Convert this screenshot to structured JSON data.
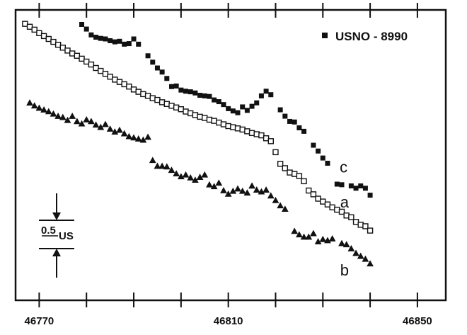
{
  "chart_data": {
    "type": "scatter",
    "title": "",
    "xlabel": "",
    "ylabel": "",
    "xlim": [
      46765,
      46856
    ],
    "ylim": [
      0,
      10
    ],
    "x_ticks": [
      46770,
      46810,
      46850
    ],
    "x_tick_labels": [
      "46770",
      "46810",
      "46850"
    ],
    "grid": false,
    "legend": {
      "label": "USNO - 8990",
      "marker": "filled-square",
      "position": "top-right"
    },
    "scale_bar": {
      "label": "0.5",
      "unit": "US"
    },
    "series": [
      {
        "name": "a",
        "marker": "open-square",
        "points": [
          [
            46767,
            9.52
          ],
          [
            46768,
            9.42
          ],
          [
            46769,
            9.32
          ],
          [
            46770,
            9.2
          ],
          [
            46771,
            9.1
          ],
          [
            46772,
            9.0
          ],
          [
            46773,
            8.9
          ],
          [
            46774,
            8.8
          ],
          [
            46775,
            8.7
          ],
          [
            46776,
            8.6
          ],
          [
            46777,
            8.5
          ],
          [
            46778,
            8.42
          ],
          [
            46779,
            8.32
          ],
          [
            46780,
            8.22
          ],
          [
            46781,
            8.12
          ],
          [
            46782,
            8.0
          ],
          [
            46783,
            7.9
          ],
          [
            46784,
            7.8
          ],
          [
            46785,
            7.7
          ],
          [
            46786,
            7.6
          ],
          [
            46787,
            7.52
          ],
          [
            46788,
            7.44
          ],
          [
            46789,
            7.36
          ],
          [
            46790,
            7.26
          ],
          [
            46791,
            7.18
          ],
          [
            46792,
            7.1
          ],
          [
            46793,
            7.04
          ],
          [
            46794,
            6.96
          ],
          [
            46795,
            6.9
          ],
          [
            46796,
            6.82
          ],
          [
            46797,
            6.76
          ],
          [
            46798,
            6.7
          ],
          [
            46799,
            6.64
          ],
          [
            46800,
            6.58
          ],
          [
            46801,
            6.5
          ],
          [
            46802,
            6.44
          ],
          [
            46803,
            6.38
          ],
          [
            46804,
            6.32
          ],
          [
            46805,
            6.28
          ],
          [
            46806,
            6.22
          ],
          [
            46807,
            6.18
          ],
          [
            46808,
            6.12
          ],
          [
            46809,
            6.06
          ],
          [
            46810,
            6.0
          ],
          [
            46811,
            5.96
          ],
          [
            46812,
            5.92
          ],
          [
            46813,
            5.88
          ],
          [
            46814,
            5.82
          ],
          [
            46815,
            5.76
          ],
          [
            46816,
            5.72
          ],
          [
            46817,
            5.68
          ],
          [
            46818,
            5.58
          ],
          [
            46819,
            5.48
          ],
          [
            46820,
            5.1
          ],
          [
            46821,
            4.7
          ],
          [
            46822,
            4.55
          ],
          [
            46823,
            4.4
          ],
          [
            46824,
            4.35
          ],
          [
            46825,
            4.28
          ],
          [
            46826,
            4.1
          ],
          [
            46827,
            3.78
          ],
          [
            46828,
            3.65
          ],
          [
            46829,
            3.5
          ],
          [
            46830,
            3.4
          ],
          [
            46831,
            3.3
          ],
          [
            46832,
            3.2
          ],
          [
            46833,
            3.12
          ],
          [
            46834,
            3.05
          ],
          [
            46835,
            2.92
          ],
          [
            46836,
            2.86
          ],
          [
            46837,
            2.7
          ],
          [
            46838,
            2.6
          ],
          [
            46839,
            2.55
          ],
          [
            46840,
            2.4
          ]
        ]
      },
      {
        "name": "b",
        "marker": "open-triangle",
        "points": [
          [
            46768,
            6.8
          ],
          [
            46769,
            6.7
          ],
          [
            46770,
            6.62
          ],
          [
            46771,
            6.56
          ],
          [
            46772,
            6.5
          ],
          [
            46773,
            6.42
          ],
          [
            46774,
            6.34
          ],
          [
            46775,
            6.3
          ],
          [
            46776,
            6.2
          ],
          [
            46777,
            6.34
          ],
          [
            46778,
            6.16
          ],
          [
            46779,
            6.08
          ],
          [
            46780,
            6.22
          ],
          [
            46781,
            6.16
          ],
          [
            46782,
            6.04
          ],
          [
            46783,
            5.96
          ],
          [
            46784,
            6.06
          ],
          [
            46785,
            5.9
          ],
          [
            46786,
            5.8
          ],
          [
            46787,
            5.86
          ],
          [
            46788,
            5.74
          ],
          [
            46789,
            5.64
          ],
          [
            46790,
            5.6
          ],
          [
            46791,
            5.56
          ],
          [
            46792,
            5.52
          ],
          [
            46793,
            5.62
          ],
          [
            46794,
            4.82
          ],
          [
            46795,
            4.62
          ],
          [
            46796,
            4.62
          ],
          [
            46797,
            4.6
          ],
          [
            46798,
            4.48
          ],
          [
            46799,
            4.36
          ],
          [
            46800,
            4.26
          ],
          [
            46801,
            4.32
          ],
          [
            46802,
            4.22
          ],
          [
            46803,
            4.14
          ],
          [
            46804,
            4.24
          ],
          [
            46805,
            4.32
          ],
          [
            46806,
            3.98
          ],
          [
            46807,
            3.92
          ],
          [
            46808,
            4.04
          ],
          [
            46809,
            3.78
          ],
          [
            46810,
            3.66
          ],
          [
            46811,
            3.76
          ],
          [
            46812,
            3.84
          ],
          [
            46813,
            3.76
          ],
          [
            46814,
            3.7
          ],
          [
            46815,
            3.94
          ],
          [
            46816,
            3.8
          ],
          [
            46817,
            3.74
          ],
          [
            46818,
            3.8
          ],
          [
            46819,
            3.6
          ],
          [
            46820,
            3.44
          ],
          [
            46821,
            3.26
          ],
          [
            46822,
            3.14
          ],
          [
            46824,
            2.38
          ],
          [
            46825,
            2.26
          ],
          [
            46826,
            2.18
          ],
          [
            46827,
            2.18
          ],
          [
            46828,
            2.3
          ],
          [
            46829,
            2.02
          ],
          [
            46830,
            2.1
          ],
          [
            46831,
            2.06
          ],
          [
            46832,
            2.12
          ],
          [
            46834,
            1.96
          ],
          [
            46835,
            1.92
          ],
          [
            46836,
            1.78
          ],
          [
            46837,
            1.62
          ],
          [
            46838,
            1.52
          ],
          [
            46839,
            1.42
          ],
          [
            46840,
            1.26
          ]
        ]
      },
      {
        "name": "c",
        "marker": "filled-square",
        "points": [
          [
            46779,
            9.5
          ],
          [
            46780,
            9.34
          ],
          [
            46781,
            9.14
          ],
          [
            46782,
            9.06
          ],
          [
            46783,
            9.02
          ],
          [
            46784,
            9.0
          ],
          [
            46785,
            8.94
          ],
          [
            46786,
            8.9
          ],
          [
            46787,
            8.92
          ],
          [
            46788,
            8.82
          ],
          [
            46789,
            8.84
          ],
          [
            46790,
            9.0
          ],
          [
            46791,
            8.82
          ],
          [
            46793,
            8.42
          ],
          [
            46794,
            8.2
          ],
          [
            46795,
            8.0
          ],
          [
            46796,
            7.86
          ],
          [
            46797,
            7.64
          ],
          [
            46798,
            7.36
          ],
          [
            46799,
            7.38
          ],
          [
            46800,
            7.24
          ],
          [
            46801,
            7.2
          ],
          [
            46802,
            7.18
          ],
          [
            46803,
            7.14
          ],
          [
            46804,
            7.06
          ],
          [
            46805,
            7.04
          ],
          [
            46806,
            7.02
          ],
          [
            46807,
            6.9
          ],
          [
            46808,
            6.84
          ],
          [
            46809,
            6.74
          ],
          [
            46810,
            6.6
          ],
          [
            46811,
            6.52
          ],
          [
            46812,
            6.46
          ],
          [
            46813,
            6.66
          ],
          [
            46814,
            6.54
          ],
          [
            46815,
            6.68
          ],
          [
            46816,
            6.8
          ],
          [
            46817,
            7.04
          ],
          [
            46818,
            7.2
          ],
          [
            46819,
            7.08
          ],
          [
            46821,
            6.56
          ],
          [
            46822,
            6.34
          ],
          [
            46823,
            6.16
          ],
          [
            46824,
            6.14
          ],
          [
            46825,
            5.94
          ],
          [
            46826,
            5.82
          ],
          [
            46828,
            5.34
          ],
          [
            46829,
            5.14
          ],
          [
            46830,
            4.9
          ],
          [
            46831,
            4.72
          ],
          [
            46833,
            4.0
          ],
          [
            46834,
            3.98
          ],
          [
            46836,
            3.94
          ],
          [
            46837,
            3.86
          ],
          [
            46838,
            3.94
          ],
          [
            46839,
            3.86
          ],
          [
            46840,
            3.62
          ]
        ]
      }
    ]
  }
}
